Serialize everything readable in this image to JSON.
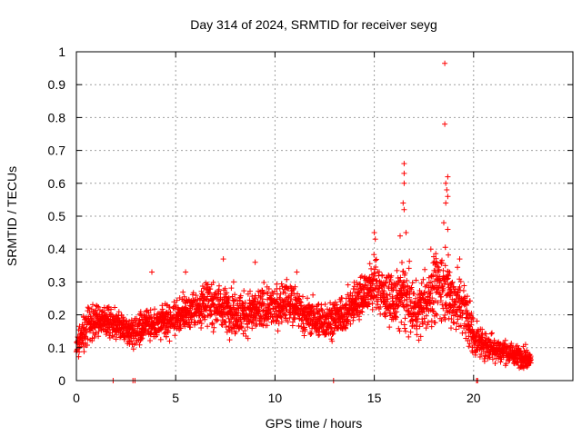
{
  "chart_data": {
    "type": "scatter",
    "title": "Day 314 of 2024, SRMTID for receiver seyg",
    "xlabel": "GPS time / hours",
    "ylabel": "SRMTID / TECUs",
    "xlim": [
      0,
      25
    ],
    "ylim": [
      0,
      1
    ],
    "xticks": [
      "0",
      "5",
      "10",
      "15",
      "20"
    ],
    "xtick_values": [
      0,
      5,
      10,
      15,
      20
    ],
    "yticks": [
      "0",
      "0.1",
      "0.2",
      "0.3",
      "0.4",
      "0.5",
      "0.6",
      "0.7",
      "0.8",
      "0.9",
      "1"
    ],
    "ytick_values": [
      0,
      0.1,
      0.2,
      0.3,
      0.4,
      0.5,
      0.6,
      0.7,
      0.8,
      0.9,
      1
    ],
    "grid": true,
    "marker": "+",
    "series": [
      {
        "name": "SRMTID",
        "color": "#ff0000",
        "envelope": [
          [
            0.0,
            0.1,
            0.04
          ],
          [
            0.5,
            0.16,
            0.05
          ],
          [
            1.0,
            0.19,
            0.05
          ],
          [
            1.5,
            0.18,
            0.04
          ],
          [
            2.0,
            0.17,
            0.04
          ],
          [
            2.5,
            0.15,
            0.04
          ],
          [
            3.0,
            0.15,
            0.05
          ],
          [
            3.5,
            0.18,
            0.05
          ],
          [
            4.0,
            0.17,
            0.04
          ],
          [
            4.5,
            0.18,
            0.05
          ],
          [
            5.0,
            0.19,
            0.05
          ],
          [
            5.5,
            0.21,
            0.05
          ],
          [
            6.0,
            0.21,
            0.05
          ],
          [
            6.5,
            0.24,
            0.06
          ],
          [
            7.0,
            0.23,
            0.06
          ],
          [
            7.5,
            0.22,
            0.06
          ],
          [
            8.0,
            0.21,
            0.06
          ],
          [
            8.5,
            0.2,
            0.06
          ],
          [
            9.0,
            0.21,
            0.06
          ],
          [
            9.5,
            0.22,
            0.06
          ],
          [
            10.0,
            0.22,
            0.06
          ],
          [
            10.5,
            0.24,
            0.06
          ],
          [
            11.0,
            0.22,
            0.06
          ],
          [
            11.5,
            0.2,
            0.05
          ],
          [
            12.0,
            0.19,
            0.05
          ],
          [
            12.5,
            0.18,
            0.05
          ],
          [
            13.0,
            0.19,
            0.05
          ],
          [
            13.5,
            0.2,
            0.05
          ],
          [
            14.0,
            0.24,
            0.06
          ],
          [
            14.5,
            0.27,
            0.06
          ],
          [
            15.0,
            0.29,
            0.08
          ],
          [
            15.5,
            0.26,
            0.07
          ],
          [
            16.0,
            0.24,
            0.08
          ],
          [
            16.5,
            0.26,
            0.1
          ],
          [
            17.0,
            0.21,
            0.08
          ],
          [
            17.5,
            0.23,
            0.08
          ],
          [
            18.0,
            0.28,
            0.09
          ],
          [
            18.5,
            0.3,
            0.11
          ],
          [
            19.0,
            0.24,
            0.08
          ],
          [
            19.5,
            0.23,
            0.08
          ],
          [
            20.0,
            0.13,
            0.05
          ],
          [
            20.5,
            0.11,
            0.04
          ],
          [
            21.0,
            0.1,
            0.04
          ],
          [
            21.5,
            0.09,
            0.03
          ],
          [
            22.0,
            0.08,
            0.03
          ],
          [
            22.5,
            0.07,
            0.03
          ],
          [
            22.9,
            0.07,
            0.02
          ]
        ],
        "spikes": [
          [
            18.55,
            0.965
          ],
          [
            18.55,
            0.78
          ],
          [
            16.5,
            0.66
          ],
          [
            16.5,
            0.63
          ],
          [
            16.5,
            0.6
          ],
          [
            16.45,
            0.54
          ],
          [
            16.5,
            0.52
          ],
          [
            18.7,
            0.62
          ],
          [
            18.6,
            0.6
          ],
          [
            18.65,
            0.58
          ],
          [
            18.7,
            0.56
          ],
          [
            18.6,
            0.54
          ],
          [
            15.0,
            0.45
          ],
          [
            15.05,
            0.43
          ],
          [
            16.6,
            0.45
          ],
          [
            16.3,
            0.44
          ],
          [
            17.85,
            0.4
          ],
          [
            18.5,
            0.48
          ],
          [
            18.7,
            0.46
          ],
          [
            19.3,
            0.37
          ],
          [
            7.4,
            0.37
          ],
          [
            9.0,
            0.36
          ],
          [
            3.8,
            0.33
          ],
          [
            5.5,
            0.33
          ],
          [
            11.1,
            0.33
          ]
        ],
        "zeros": [
          1.85,
          2.85,
          2.95,
          12.95,
          20.15,
          20.2
        ]
      }
    ]
  }
}
